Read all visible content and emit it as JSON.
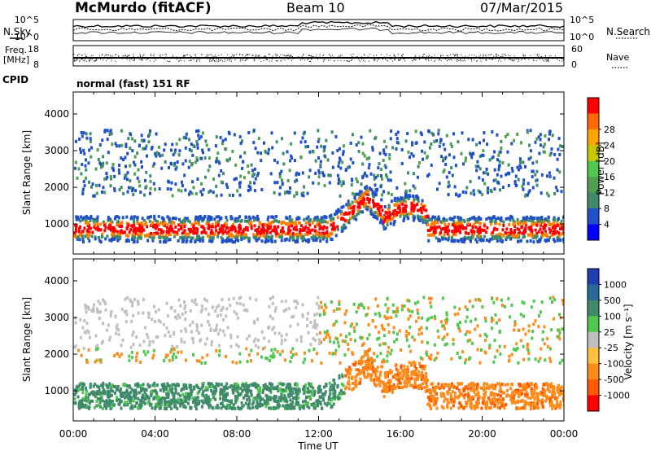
{
  "header": {
    "station": "McMurdo (fitACF)",
    "beam": "Beam 10",
    "date": "07/Mar/2015"
  },
  "noise_panel": {
    "left_label": "N.Sky",
    "right_label": "N.Search",
    "left_ticks": [
      "10^5",
      "10^0"
    ],
    "right_ticks": [
      "10^5",
      "10^0"
    ]
  },
  "freq_panel": {
    "left_label_1": "Freq.",
    "left_label_2": "[MHz]",
    "right_label": "Nave",
    "left_ticks": [
      "18",
      "8"
    ],
    "right_ticks": [
      "60",
      "0"
    ]
  },
  "cpid": {
    "label": "CPID",
    "text": "normal (fast) 151 RF"
  },
  "chart_data": [
    {
      "type": "heatmap",
      "name": "power",
      "ylabel": "Slant Range [km]",
      "xlabel": "",
      "xlim": [
        "00:00",
        "24:00"
      ],
      "ylim": [
        180,
        4600
      ],
      "yticks": [
        1000,
        2000,
        3000,
        4000
      ],
      "colorbar": {
        "label": "Power [dB]",
        "range": [
          0,
          32
        ],
        "ticks": [
          "4",
          "8",
          "12",
          "16",
          "20",
          "24",
          "28"
        ],
        "colors": [
          "#0000ff",
          "#2050c8",
          "#3f8a6a",
          "#50a050",
          "#50c850",
          "#c8c800",
          "#ffa500",
          "#ff6a00",
          "#ff0000"
        ]
      }
    },
    {
      "type": "heatmap",
      "name": "velocity",
      "ylabel": "Slant Range [km]",
      "xlabel": "Time UT",
      "xlim": [
        "00:00",
        "24:00"
      ],
      "ylim": [
        180,
        4600
      ],
      "yticks": [
        1000,
        2000,
        3000,
        4000
      ],
      "xticks": [
        "00:00",
        "04:00",
        "08:00",
        "12:00",
        "16:00",
        "20:00",
        "00:00"
      ],
      "colorbar": {
        "label": "Velocity [m s⁻¹]",
        "ticks": [
          "1000",
          "500",
          "100",
          "25",
          "-25",
          "-100",
          "-500",
          "-1000"
        ],
        "colors": [
          "#1f3fb0",
          "#2a6a9a",
          "#3f8a6a",
          "#50c850",
          "#c0c0c0",
          "#ffc040",
          "#ff8c1a",
          "#ff5a00",
          "#ff0000"
        ]
      }
    }
  ],
  "colors": {
    "scatter_green": "#3f8a6a",
    "scatter_orange": "#ff8c1a"
  }
}
